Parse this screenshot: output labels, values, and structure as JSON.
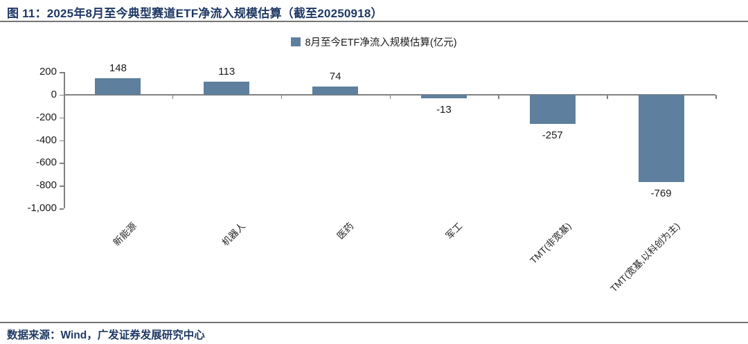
{
  "figure": {
    "title": "图 11：2025年8月至今典型赛道ETF净流入规模估算（截至20250918）",
    "source": "数据来源：Wind，广发证券发展研究中心"
  },
  "legend": {
    "label": "8月至今ETF净流入规模估算(亿元)"
  },
  "colors": {
    "bar": "#5e7f9e",
    "axis": "#808080",
    "title_text": "#1f3864",
    "label_text": "#1a1a1a"
  },
  "chart_data": {
    "type": "bar",
    "title": "8月至今ETF净流入规模估算(亿元)",
    "categories": [
      "新能源",
      "机器人",
      "医药",
      "军工",
      "TMT(非宽基)",
      "TMT(宽基,以科创为主)"
    ],
    "values": [
      148,
      113,
      74,
      -13,
      -257,
      -769
    ],
    "data_labels": [
      "148",
      "113",
      "74",
      "-13",
      "-257",
      "-769"
    ],
    "xlabel": "",
    "ylabel": "",
    "ylim": [
      -1000,
      200
    ],
    "yticks": [
      200,
      0,
      -200,
      -400,
      -600,
      -800,
      -1000
    ],
    "ytick_labels": [
      "200",
      "0",
      "-200",
      "-400",
      "-600",
      "-800",
      "-1,000"
    ],
    "grid": false,
    "legend_entries": [
      "8月至今ETF净流入规模估算(亿元)"
    ],
    "legend_position": "top-center",
    "bar_color": "#5e7f9e"
  }
}
